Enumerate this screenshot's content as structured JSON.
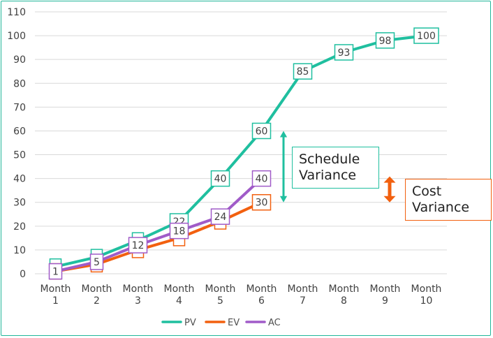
{
  "chart_data": {
    "type": "line",
    "categories": [
      [
        "Month",
        "1"
      ],
      [
        "Month",
        "2"
      ],
      [
        "Month",
        "3"
      ],
      [
        "Month",
        "4"
      ],
      [
        "Month",
        "5"
      ],
      [
        "Month",
        "6"
      ],
      [
        "Month",
        "7"
      ],
      [
        "Month",
        "8"
      ],
      [
        "Month",
        "9"
      ],
      [
        "Month",
        "10"
      ]
    ],
    "ylim": [
      0,
      110
    ],
    "yticks": [
      0,
      10,
      20,
      30,
      40,
      50,
      60,
      70,
      80,
      90,
      100,
      110
    ],
    "grid": true,
    "legend_position": "bottom",
    "series": [
      {
        "name": "PV",
        "color": "#1fbf9f",
        "values": [
          3,
          7,
          14,
          22,
          40,
          60,
          85,
          93,
          98,
          100
        ],
        "labels": [
          "",
          "",
          "",
          "22",
          "40",
          "60",
          "85",
          "93",
          "98",
          "100"
        ]
      },
      {
        "name": "EV",
        "color": "#f2600f",
        "values": [
          1,
          4,
          10,
          15,
          22,
          30,
          null,
          null,
          null,
          null
        ],
        "labels": [
          "",
          "",
          "",
          "",
          "",
          "30",
          "",
          "",
          "",
          ""
        ]
      },
      {
        "name": "AC",
        "color": "#a05bc8",
        "values": [
          1,
          5,
          12,
          18,
          24,
          40,
          null,
          null,
          null,
          null
        ],
        "labels": [
          "1",
          "5",
          "12",
          "18",
          "24",
          "40",
          "",
          "",
          "",
          ""
        ]
      }
    ],
    "annotations": [
      {
        "text": [
          "Schedule",
          "Variance"
        ],
        "color": "#1fbf9f",
        "from": 60,
        "to": 30,
        "category": 6
      },
      {
        "text": [
          "Cost",
          "Variance"
        ],
        "color": "#f2600f",
        "from": 40,
        "to": 30,
        "category": 6
      }
    ]
  }
}
